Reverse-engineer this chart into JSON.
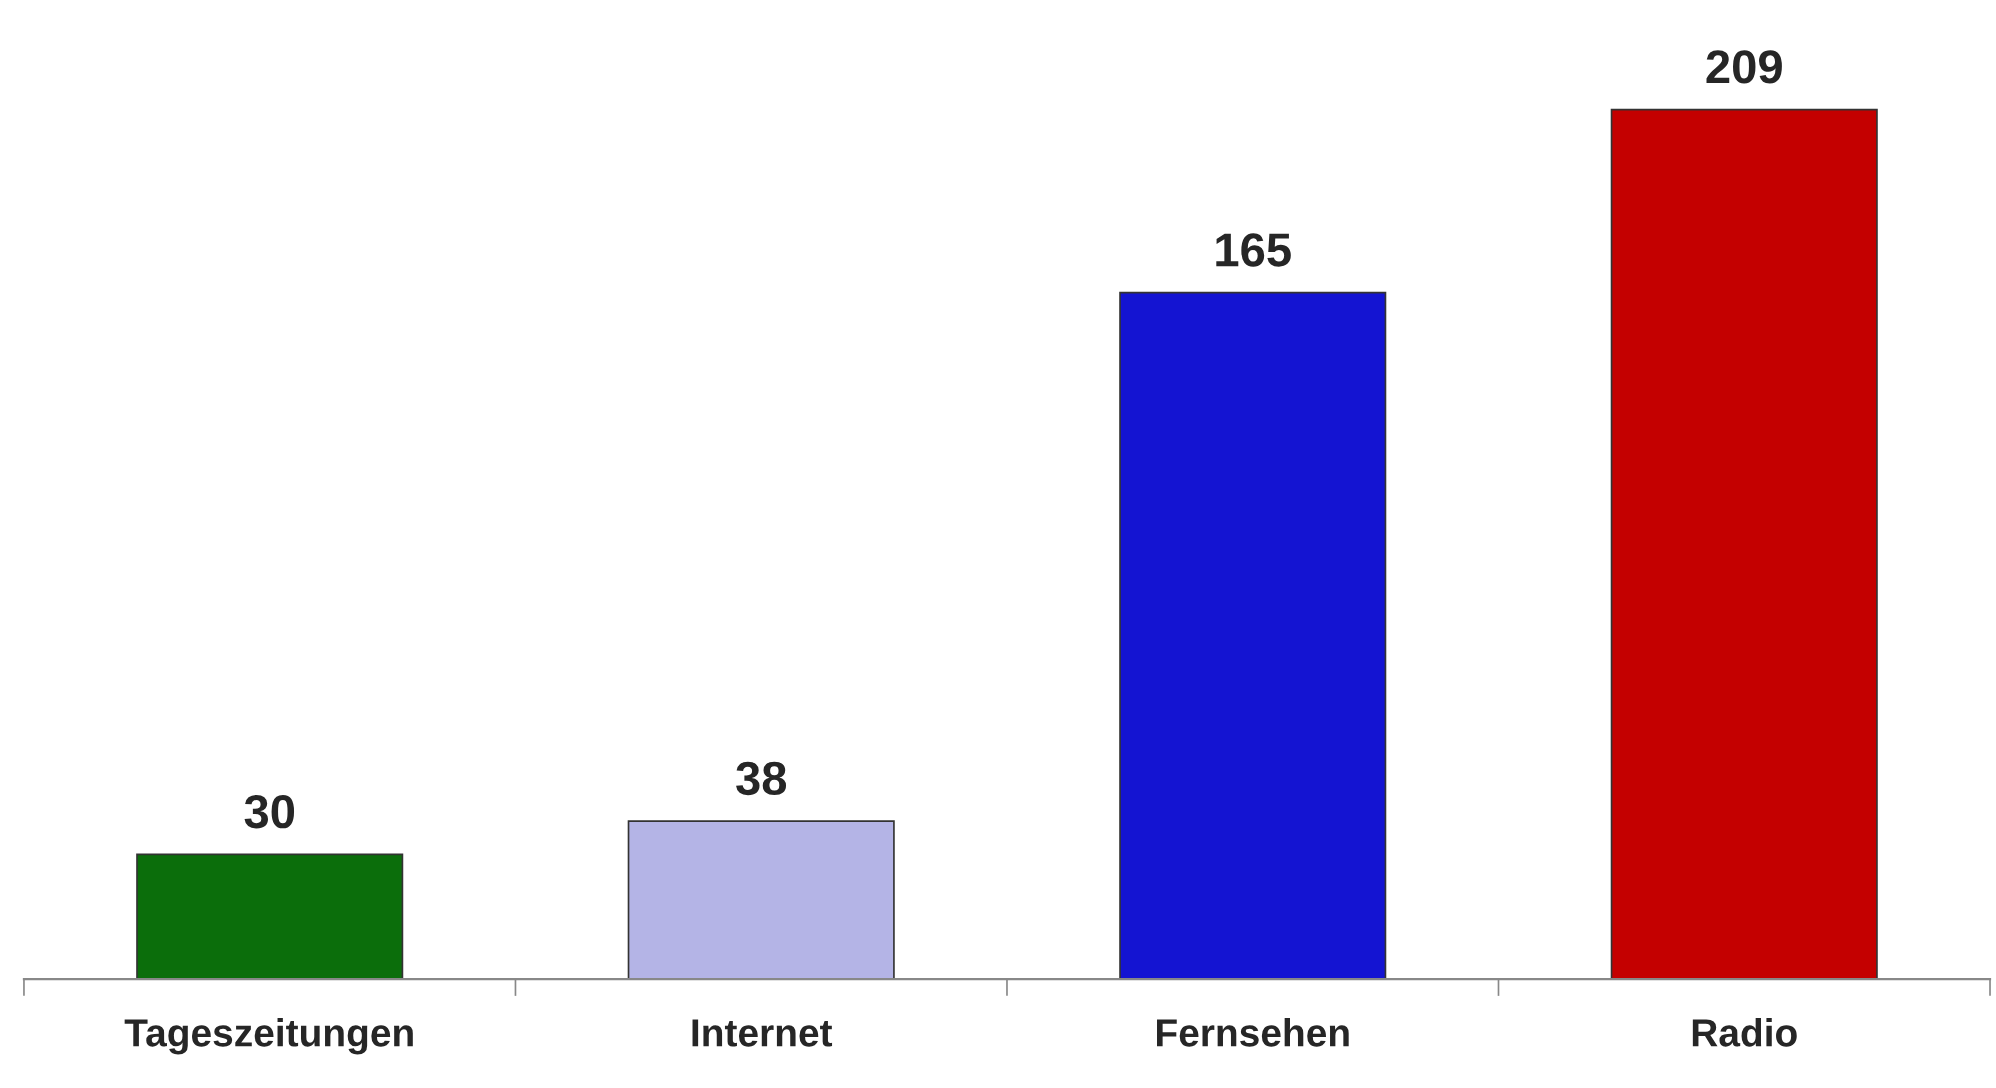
{
  "chart_data": {
    "type": "bar",
    "categories": [
      "Tageszeitungen",
      "Internet",
      "Fernsehen",
      "Radio"
    ],
    "values": [
      30,
      38,
      165,
      209
    ],
    "colors": [
      "#0b6e0b",
      "#b4b4e6",
      "#1414d2",
      "#c40000"
    ],
    "data_labels": true,
    "grid": false,
    "legend": false
  }
}
